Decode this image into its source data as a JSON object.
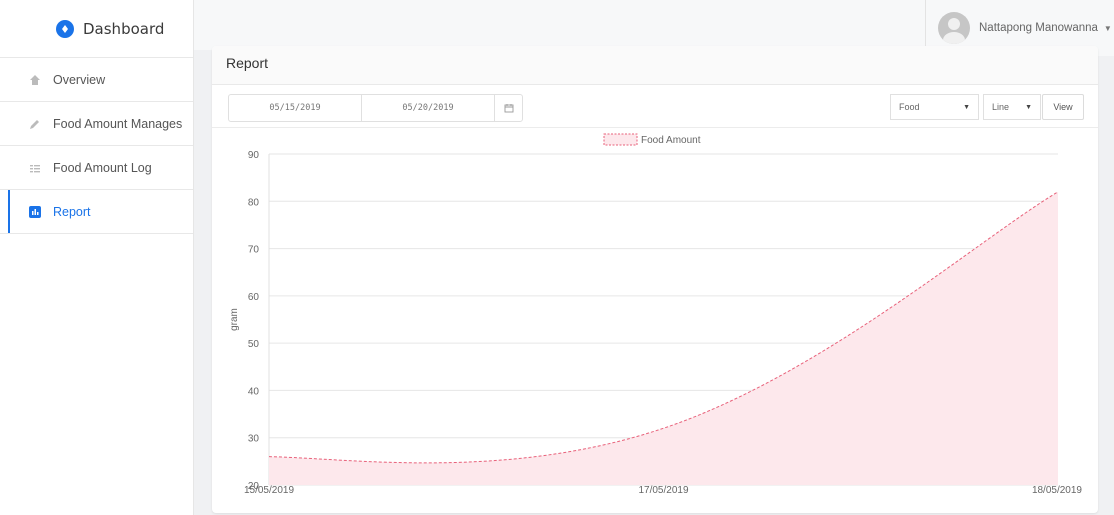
{
  "sidebar": {
    "brand": "Dashboard",
    "items": [
      {
        "label": "Overview",
        "icon": "home-icon"
      },
      {
        "label": "Food Amount Manages",
        "icon": "pencil-icon"
      },
      {
        "label": "Food Amount Log",
        "icon": "list-icon"
      },
      {
        "label": "Report",
        "icon": "bar-chart-icon",
        "active": true
      }
    ]
  },
  "header": {
    "user_name": "Nattapong Manowanna"
  },
  "report": {
    "title": "Report",
    "start_date": "05/15/2019",
    "end_date": "05/20/2019",
    "type_select": "Food",
    "chart_select": "Line",
    "view_label": "View"
  },
  "colors": {
    "accent": "#1a73e8",
    "series_line": "#e8617a",
    "series_fill": "#fde8ec"
  },
  "chart_data": {
    "type": "area",
    "x": [
      "15/05/2019",
      "17/05/2019",
      "18/05/2019"
    ],
    "series": [
      {
        "name": "Food Amount",
        "values": [
          26,
          32,
          82
        ]
      }
    ],
    "ylabel": "gram",
    "ylim": [
      20,
      90
    ],
    "yticks": [
      20,
      30,
      40,
      50,
      60,
      70,
      80,
      90
    ],
    "legend": "top-center",
    "grid": true
  }
}
